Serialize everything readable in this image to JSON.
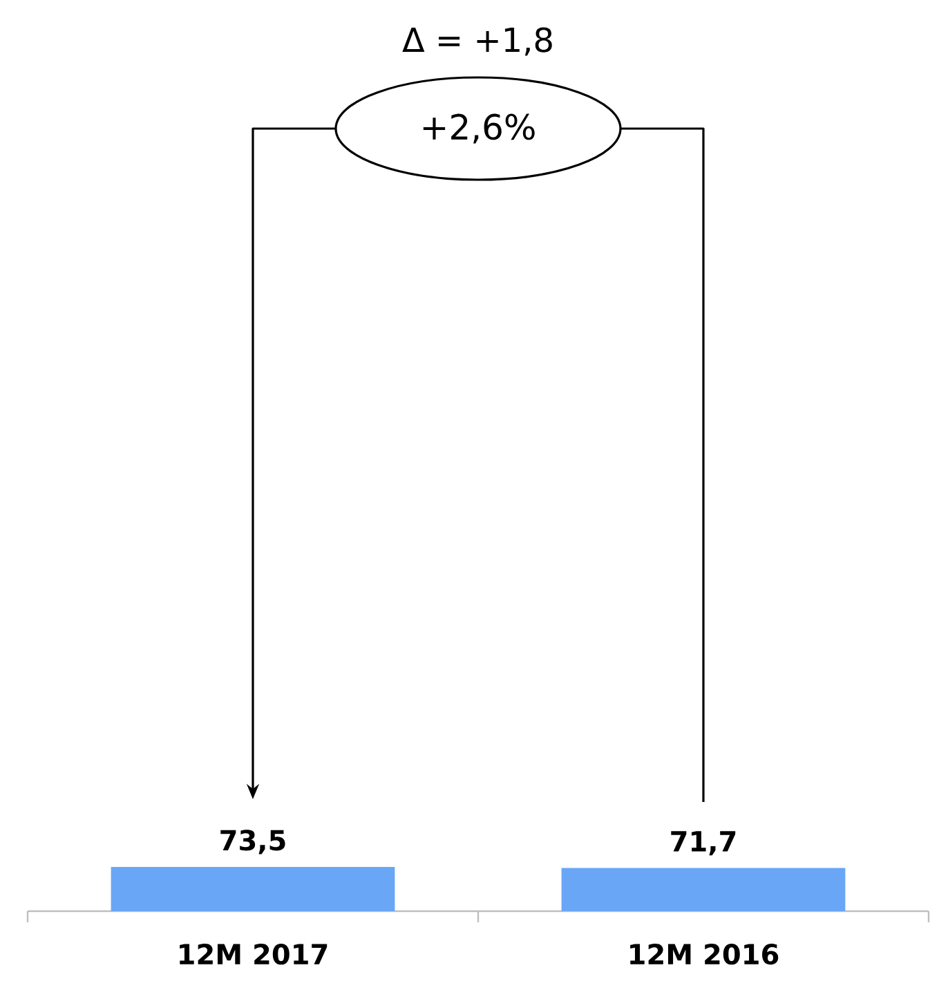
{
  "chart_data": {
    "type": "bar",
    "categories": [
      "12M 2017",
      "12M 2016"
    ],
    "values": [
      73.5,
      71.7
    ],
    "value_labels": [
      "73,5",
      "71,7"
    ],
    "color": "#6aa6f6",
    "annotations": [
      "Δ = +1,8",
      "+2,6%"
    ]
  }
}
